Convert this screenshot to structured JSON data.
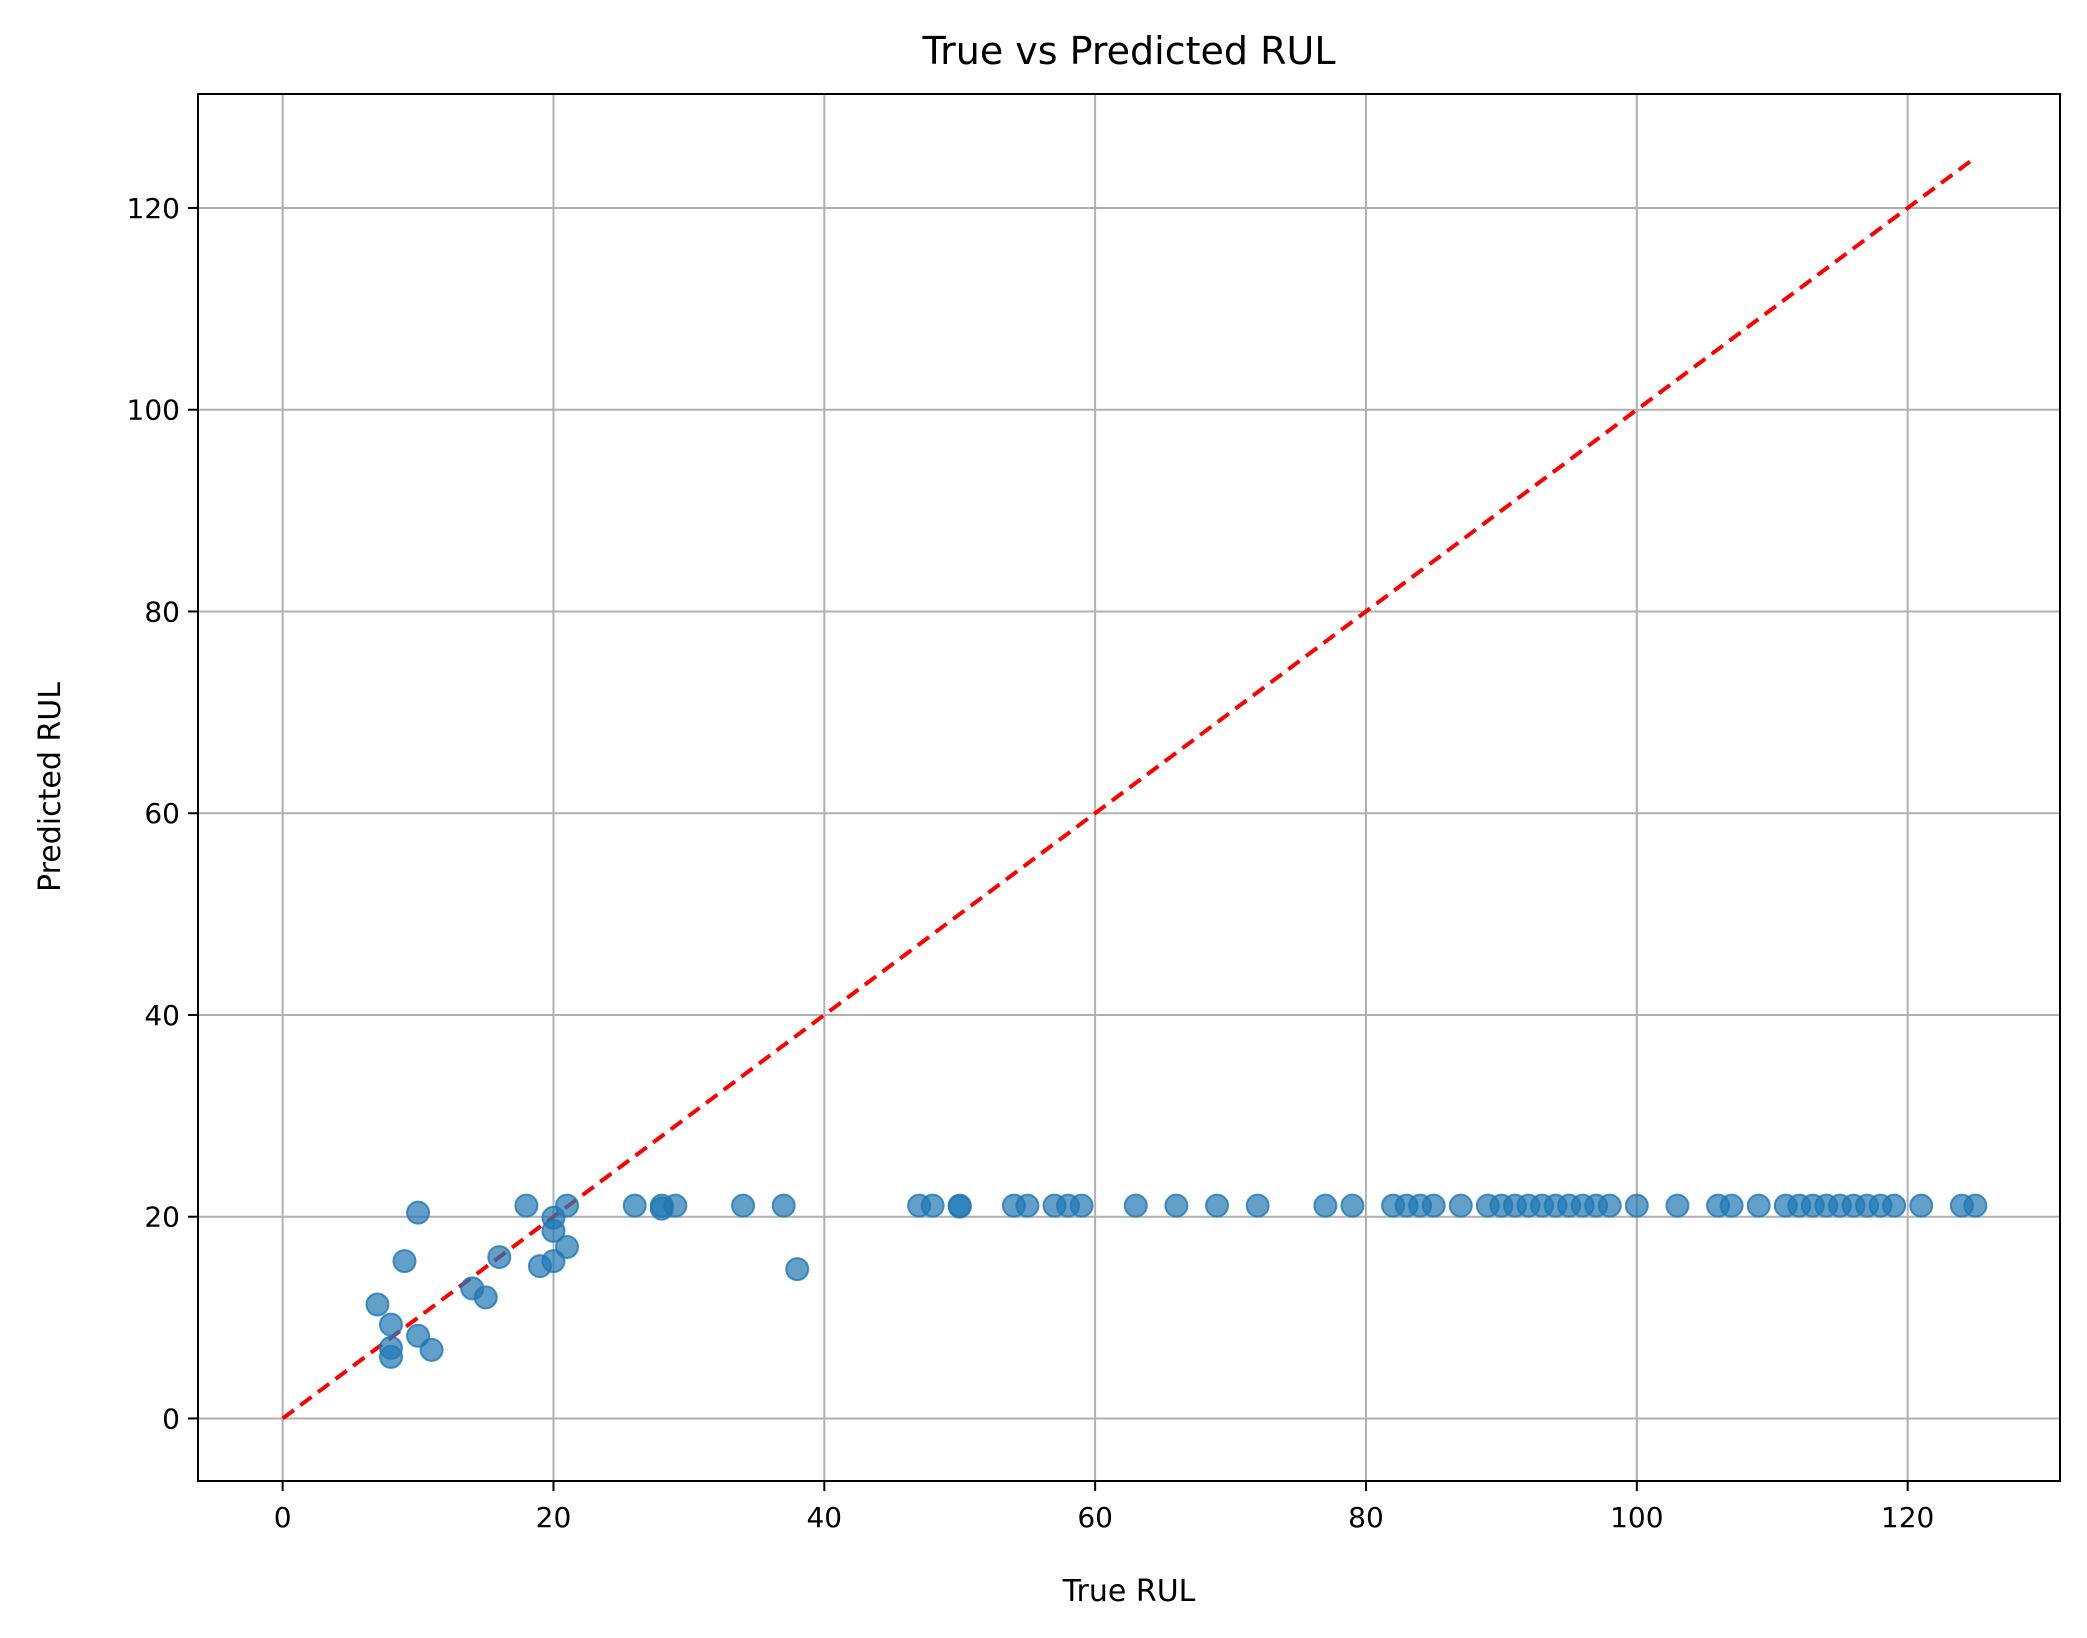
{
  "chart_data": {
    "type": "scatter",
    "title": "True vs Predicted RUL",
    "xlabel": "True RUL",
    "ylabel": "Predicted RUL",
    "xlim": [
      -6.25,
      131.25
    ],
    "ylim": [
      -6.2,
      131.3
    ],
    "xticks": [
      0,
      20,
      40,
      60,
      80,
      100,
      120
    ],
    "yticks": [
      0,
      20,
      40,
      60,
      80,
      100,
      120
    ],
    "grid": true,
    "colors": {
      "points": "#1f77b4",
      "reference_line": "#ff0000",
      "grid": "#b0b0b0"
    },
    "reference_line": {
      "style": "dashed",
      "x": [
        0,
        125
      ],
      "y": [
        0,
        125
      ]
    },
    "series": [
      {
        "values": [
          {
            "x": 7,
            "y": 11.3
          },
          {
            "x": 8,
            "y": 9.3
          },
          {
            "x": 8,
            "y": 7.0
          },
          {
            "x": 8,
            "y": 6.1
          },
          {
            "x": 9,
            "y": 15.6
          },
          {
            "x": 10,
            "y": 20.4
          },
          {
            "x": 10,
            "y": 8.2
          },
          {
            "x": 11,
            "y": 6.8
          },
          {
            "x": 14,
            "y": 12.9
          },
          {
            "x": 15,
            "y": 12.0
          },
          {
            "x": 16,
            "y": 16.0
          },
          {
            "x": 18,
            "y": 21.1
          },
          {
            "x": 19,
            "y": 15.1
          },
          {
            "x": 20,
            "y": 19.9
          },
          {
            "x": 20,
            "y": 18.6
          },
          {
            "x": 20,
            "y": 15.6
          },
          {
            "x": 21,
            "y": 21.1
          },
          {
            "x": 21,
            "y": 17.0
          },
          {
            "x": 26,
            "y": 21.1
          },
          {
            "x": 28,
            "y": 21.1
          },
          {
            "x": 28,
            "y": 20.8
          },
          {
            "x": 29,
            "y": 21.1
          },
          {
            "x": 34,
            "y": 21.1
          },
          {
            "x": 37,
            "y": 21.1
          },
          {
            "x": 38,
            "y": 14.8
          },
          {
            "x": 47,
            "y": 21.1
          },
          {
            "x": 48,
            "y": 21.1
          },
          {
            "x": 50,
            "y": 21.1
          },
          {
            "x": 50,
            "y": 21.0
          },
          {
            "x": 54,
            "y": 21.1
          },
          {
            "x": 55,
            "y": 21.1
          },
          {
            "x": 57,
            "y": 21.1
          },
          {
            "x": 58,
            "y": 21.1
          },
          {
            "x": 59,
            "y": 21.1
          },
          {
            "x": 63,
            "y": 21.1
          },
          {
            "x": 66,
            "y": 21.1
          },
          {
            "x": 69,
            "y": 21.1
          },
          {
            "x": 72,
            "y": 21.1
          },
          {
            "x": 77,
            "y": 21.1
          },
          {
            "x": 79,
            "y": 21.1
          },
          {
            "x": 82,
            "y": 21.1
          },
          {
            "x": 83,
            "y": 21.1
          },
          {
            "x": 84,
            "y": 21.1
          },
          {
            "x": 85,
            "y": 21.1
          },
          {
            "x": 87,
            "y": 21.1
          },
          {
            "x": 89,
            "y": 21.1
          },
          {
            "x": 90,
            "y": 21.1
          },
          {
            "x": 91,
            "y": 21.1
          },
          {
            "x": 92,
            "y": 21.1
          },
          {
            "x": 93,
            "y": 21.1
          },
          {
            "x": 94,
            "y": 21.1
          },
          {
            "x": 95,
            "y": 21.1
          },
          {
            "x": 96,
            "y": 21.1
          },
          {
            "x": 97,
            "y": 21.1
          },
          {
            "x": 98,
            "y": 21.1
          },
          {
            "x": 100,
            "y": 21.1
          },
          {
            "x": 103,
            "y": 21.1
          },
          {
            "x": 106,
            "y": 21.1
          },
          {
            "x": 107,
            "y": 21.1
          },
          {
            "x": 109,
            "y": 21.1
          },
          {
            "x": 111,
            "y": 21.1
          },
          {
            "x": 112,
            "y": 21.1
          },
          {
            "x": 113,
            "y": 21.1
          },
          {
            "x": 114,
            "y": 21.1
          },
          {
            "x": 115,
            "y": 21.1
          },
          {
            "x": 116,
            "y": 21.1
          },
          {
            "x": 117,
            "y": 21.1
          },
          {
            "x": 118,
            "y": 21.1
          },
          {
            "x": 119,
            "y": 21.1
          },
          {
            "x": 121,
            "y": 21.1
          },
          {
            "x": 124,
            "y": 21.1
          },
          {
            "x": 125,
            "y": 21.1
          }
        ]
      }
    ]
  }
}
